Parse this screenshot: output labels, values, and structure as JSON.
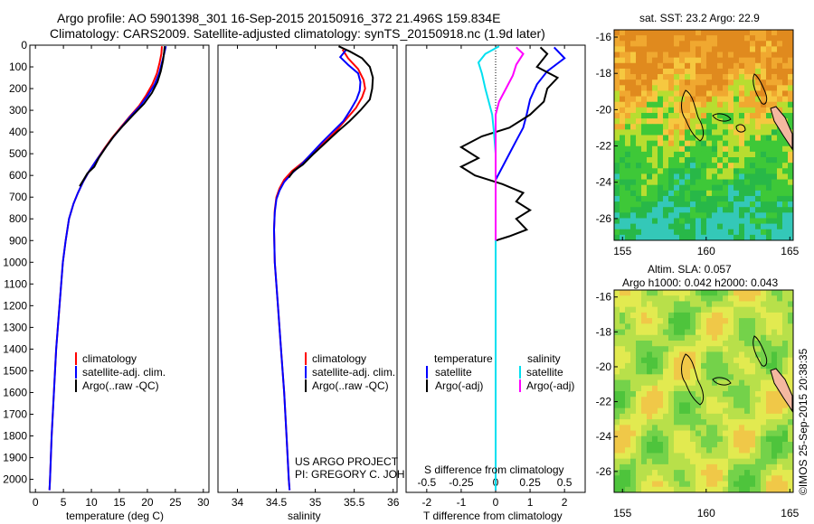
{
  "title_line1": "Argo profile: AO 5901398_301 16-Sep-2015 20150916_372 21.496S 159.834E",
  "title_line2": "Climatology: CARS2009. Satellite-adjusted climatology: synTS_20150918.nc (1.9d later)",
  "project_line1": "US ARGO PROJECT",
  "project_line2": "PI: GREGORY C. JOHNSON",
  "credit": "©IMOS 25-Sep-2015 20:38:35",
  "colors": {
    "climatology": "#ff0000",
    "satellite": "#0000ff",
    "argo": "#000000",
    "salinity_satellite": "#00e0f0",
    "salinity_argo": "#ff00ff"
  },
  "chart_data": [
    {
      "type": "line",
      "name": "temperature-profile",
      "xlabel": "temperature (deg C)",
      "xlim": [
        -1,
        31
      ],
      "xticks": [
        0,
        5,
        10,
        15,
        20,
        25,
        30
      ],
      "ylim": [
        2060,
        0
      ],
      "yticks": [
        0,
        100,
        200,
        300,
        400,
        500,
        600,
        700,
        800,
        900,
        1000,
        1100,
        1200,
        1300,
        1400,
        1500,
        1600,
        1700,
        1800,
        1900,
        2000
      ],
      "legend": [
        "climatology",
        "satellite-adj. clim.",
        "Argo(..raw -QC)"
      ],
      "series": [
        {
          "name": "climatology",
          "color": "#ff0000",
          "points": [
            [
              22.6,
              5
            ],
            [
              22.5,
              40
            ],
            [
              22.2,
              80
            ],
            [
              21.7,
              130
            ],
            [
              20.9,
              180
            ],
            [
              19.8,
              230
            ],
            [
              18.5,
              280
            ],
            [
              16.8,
              330
            ],
            [
              15.2,
              380
            ],
            [
              13.6,
              430
            ],
            [
              12.2,
              480
            ],
            [
              10.9,
              530
            ],
            [
              9.6,
              580
            ],
            [
              8.5,
              630
            ],
            [
              7.6,
              680
            ],
            [
              6.8,
              730
            ],
            [
              6.0,
              800
            ],
            [
              5.4,
              900
            ],
            [
              4.9,
              1000
            ],
            [
              4.3,
              1200
            ],
            [
              3.7,
              1400
            ],
            [
              3.3,
              1600
            ],
            [
              2.9,
              1800
            ],
            [
              2.6,
              2000
            ],
            [
              2.5,
              2050
            ]
          ]
        },
        {
          "name": "satellite-adj. clim.",
          "color": "#0000ff",
          "points": [
            [
              23.3,
              5
            ],
            [
              23.0,
              40
            ],
            [
              22.6,
              80
            ],
            [
              22.1,
              130
            ],
            [
              21.3,
              180
            ],
            [
              20.1,
              230
            ],
            [
              18.7,
              280
            ],
            [
              16.9,
              330
            ],
            [
              15.3,
              380
            ],
            [
              13.7,
              430
            ],
            [
              12.3,
              480
            ],
            [
              10.9,
              530
            ],
            [
              9.6,
              580
            ],
            [
              8.5,
              630
            ],
            [
              7.6,
              680
            ],
            [
              6.8,
              730
            ],
            [
              6.0,
              800
            ],
            [
              5.4,
              900
            ],
            [
              4.9,
              1000
            ],
            [
              4.3,
              1200
            ],
            [
              3.7,
              1400
            ],
            [
              3.3,
              1600
            ],
            [
              2.9,
              1800
            ],
            [
              2.6,
              2000
            ],
            [
              2.5,
              2050
            ]
          ]
        },
        {
          "name": "Argo(..raw -QC)",
          "color": "#000000",
          "points": [
            [
              23.1,
              5
            ],
            [
              23.0,
              30
            ],
            [
              22.8,
              70
            ],
            [
              22.4,
              120
            ],
            [
              21.8,
              170
            ],
            [
              20.8,
              220
            ],
            [
              19.4,
              270
            ],
            [
              17.5,
              320
            ],
            [
              15.7,
              370
            ],
            [
              14.0,
              420
            ],
            [
              12.6,
              470
            ],
            [
              11.3,
              520
            ],
            [
              10.5,
              560
            ],
            [
              9.3,
              590
            ],
            [
              8.6,
              620
            ],
            [
              7.9,
              650
            ]
          ]
        }
      ]
    },
    {
      "type": "line",
      "name": "salinity-profile",
      "xlabel": "salinity",
      "xlim": [
        33.75,
        36.05
      ],
      "xticks": [
        34,
        34.5,
        35,
        35.5,
        36
      ],
      "ylim": [
        2060,
        0
      ],
      "legend": [
        "climatology",
        "satellite-adj. clim.",
        "Argo(..raw -QC)"
      ],
      "series": [
        {
          "name": "climatology",
          "color": "#ff0000",
          "points": [
            [
              35.35,
              20
            ],
            [
              35.42,
              60
            ],
            [
              35.55,
              110
            ],
            [
              35.62,
              160
            ],
            [
              35.64,
              200
            ],
            [
              35.6,
              240
            ],
            [
              35.52,
              290
            ],
            [
              35.4,
              340
            ],
            [
              35.28,
              390
            ],
            [
              35.14,
              440
            ],
            [
              34.98,
              490
            ],
            [
              34.84,
              540
            ],
            [
              34.7,
              580
            ],
            [
              34.6,
              620
            ],
            [
              34.54,
              660
            ],
            [
              34.5,
              700
            ],
            [
              34.48,
              760
            ],
            [
              34.47,
              850
            ],
            [
              34.48,
              1000
            ],
            [
              34.52,
              1200
            ],
            [
              34.56,
              1400
            ],
            [
              34.6,
              1600
            ],
            [
              34.63,
              1800
            ],
            [
              34.66,
              2000
            ],
            [
              34.67,
              2050
            ]
          ]
        },
        {
          "name": "satellite-adj. clim.",
          "color": "#0000ff",
          "points": [
            [
              35.4,
              20
            ],
            [
              35.32,
              55
            ],
            [
              35.42,
              90
            ],
            [
              35.55,
              130
            ],
            [
              35.58,
              170
            ],
            [
              35.57,
              210
            ],
            [
              35.53,
              250
            ],
            [
              35.45,
              300
            ],
            [
              35.36,
              350
            ],
            [
              35.22,
              400
            ],
            [
              35.08,
              450
            ],
            [
              34.95,
              500
            ],
            [
              34.82,
              550
            ],
            [
              34.7,
              590
            ],
            [
              34.6,
              630
            ],
            [
              34.54,
              670
            ],
            [
              34.5,
              710
            ],
            [
              34.48,
              770
            ],
            [
              34.47,
              850
            ],
            [
              34.48,
              1000
            ],
            [
              34.52,
              1200
            ],
            [
              34.56,
              1400
            ],
            [
              34.6,
              1600
            ],
            [
              34.63,
              1800
            ],
            [
              34.66,
              2000
            ],
            [
              34.67,
              2050
            ]
          ]
        },
        {
          "name": "Argo(..raw -QC)",
          "color": "#000000",
          "points": [
            [
              35.3,
              5
            ],
            [
              35.45,
              30
            ],
            [
              35.6,
              60
            ],
            [
              35.7,
              100
            ],
            [
              35.74,
              150
            ],
            [
              35.73,
              200
            ],
            [
              35.7,
              250
            ],
            [
              35.58,
              300
            ],
            [
              35.44,
              350
            ],
            [
              35.28,
              400
            ],
            [
              35.13,
              450
            ],
            [
              34.98,
              500
            ],
            [
              34.84,
              550
            ],
            [
              34.72,
              580
            ],
            [
              34.66,
              610
            ]
          ]
        }
      ]
    },
    {
      "type": "line",
      "name": "difference-profile",
      "xlabel": "T difference from climatology",
      "xlabel_top": "S difference from climatology",
      "xlim": [
        -2.6,
        2.6
      ],
      "xticks": [
        -2,
        -1,
        0,
        1,
        2
      ],
      "xticks_salinity": [
        -0.5,
        -0.25,
        0,
        0.25,
        0.5
      ],
      "ylim": [
        2060,
        0
      ],
      "legend_titles": [
        "temperature",
        "salinity"
      ],
      "legend": [
        "satellite",
        "Argo(-adj)",
        "satellite",
        "Argo(-adj)"
      ],
      "series": [
        {
          "name": "temperature satellite",
          "color": "#0000ff",
          "points": [
            [
              1.7,
              10
            ],
            [
              2.0,
              60
            ],
            [
              1.5,
              120
            ],
            [
              1.2,
              180
            ],
            [
              1.0,
              250
            ],
            [
              0.9,
              320
            ],
            [
              0.8,
              380
            ],
            [
              0.6,
              440
            ],
            [
              0.4,
              500
            ],
            [
              0.2,
              560
            ],
            [
              0.0,
              620
            ],
            [
              0.0,
              800
            ],
            [
              0.0,
              1200
            ],
            [
              0.0,
              1600
            ],
            [
              0.0,
              2050
            ]
          ]
        },
        {
          "name": "temperature Argo(-adj)",
          "color": "#000000",
          "points": [
            [
              1.3,
              10
            ],
            [
              1.5,
              40
            ],
            [
              1.2,
              100
            ],
            [
              1.8,
              150
            ],
            [
              1.5,
              200
            ],
            [
              1.4,
              260
            ],
            [
              1.0,
              320
            ],
            [
              0.4,
              380
            ],
            [
              -0.4,
              420
            ],
            [
              -1.0,
              470
            ],
            [
              -0.5,
              520
            ],
            [
              -1.0,
              560
            ],
            [
              -0.6,
              600
            ],
            [
              0.2,
              640
            ],
            [
              0.8,
              680
            ],
            [
              0.6,
              720
            ],
            [
              1.0,
              760
            ],
            [
              0.6,
              800
            ],
            [
              0.9,
              850
            ],
            [
              0.4,
              880
            ],
            [
              0.0,
              900
            ]
          ]
        },
        {
          "name": "salinity satellite",
          "color": "#00e0f0",
          "points": [
            [
              0.1,
              5
            ],
            [
              -0.3,
              40
            ],
            [
              -0.5,
              80
            ],
            [
              -0.4,
              130
            ],
            [
              -0.3,
              200
            ],
            [
              -0.2,
              260
            ],
            [
              -0.1,
              320
            ],
            [
              -0.05,
              400
            ],
            [
              0.0,
              500
            ],
            [
              0.0,
              700
            ],
            [
              0.0,
              1000
            ],
            [
              0.0,
              1400
            ],
            [
              0.0,
              2050
            ]
          ]
        },
        {
          "name": "salinity Argo(-adj)",
          "color": "#ff00ff",
          "points": [
            [
              0.6,
              10
            ],
            [
              0.8,
              40
            ],
            [
              0.6,
              90
            ],
            [
              0.5,
              140
            ],
            [
              0.3,
              200
            ],
            [
              0.1,
              260
            ],
            [
              0.0,
              320
            ],
            [
              0.0,
              900
            ]
          ]
        }
      ]
    },
    {
      "type": "heatmap",
      "name": "sst-map",
      "title": "sat. SST: 23.2 Argo: 22.9",
      "xticks": [
        155,
        160,
        165
      ],
      "yticks": [
        -16,
        -18,
        -20,
        -22,
        -24,
        -26
      ],
      "xlim": [
        154.5,
        165.2
      ],
      "ylim": [
        -27.2,
        -15.6
      ]
    },
    {
      "type": "heatmap",
      "name": "sla-map",
      "title_line1": "Altim. SLA: 0.057",
      "title_line2": "Argo h1000: 0.042 h2000: 0.043",
      "xticks": [
        155,
        160,
        165
      ],
      "yticks": [
        -16,
        -18,
        -20,
        -22,
        -24,
        -26
      ],
      "xlim": [
        154.5,
        165.2
      ],
      "ylim": [
        -27.2,
        -15.6
      ]
    }
  ]
}
